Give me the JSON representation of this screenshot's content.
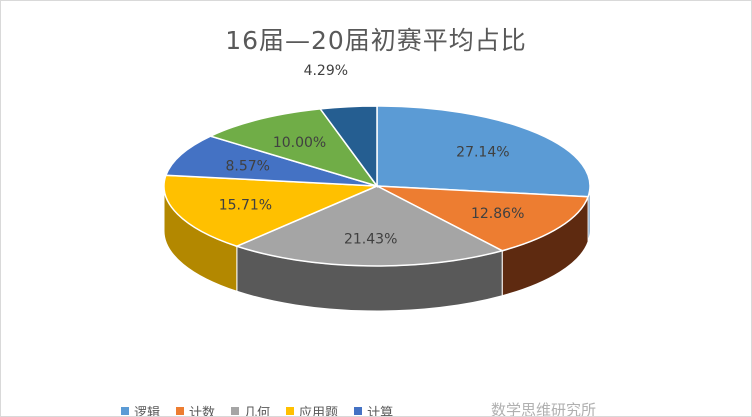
{
  "chart_data": {
    "type": "pie",
    "title": "16届—20届初赛平均占比",
    "slices": [
      {
        "name": "逻辑",
        "value": 27.14,
        "label": "27.14%",
        "color": "#5B9BD5",
        "side": "#3F76AA"
      },
      {
        "name": "计数",
        "value": 12.86,
        "label": "12.86%",
        "color": "#ED7D31",
        "side": "#5E2A10"
      },
      {
        "name": "几何",
        "value": 21.43,
        "label": "21.43%",
        "color": "#A5A5A5",
        "side": "#595959"
      },
      {
        "name": "应用题",
        "value": 15.71,
        "label": "15.71%",
        "color": "#FFC000",
        "side": "#B38800"
      },
      {
        "name": "计算",
        "value": 8.57,
        "label": "8.57%",
        "color": "#4472C4",
        "side": "#2C4F8C"
      },
      {
        "name": "",
        "value": 10.0,
        "label": "10.00%",
        "color": "#70AD47",
        "side": "#4E7A30"
      },
      {
        "name": "",
        "value": 4.29,
        "label": "4.29%",
        "color": "#255E91",
        "side": "#163A5A"
      }
    ],
    "legend_position": "bottom"
  },
  "watermark": "数学思维研究所"
}
